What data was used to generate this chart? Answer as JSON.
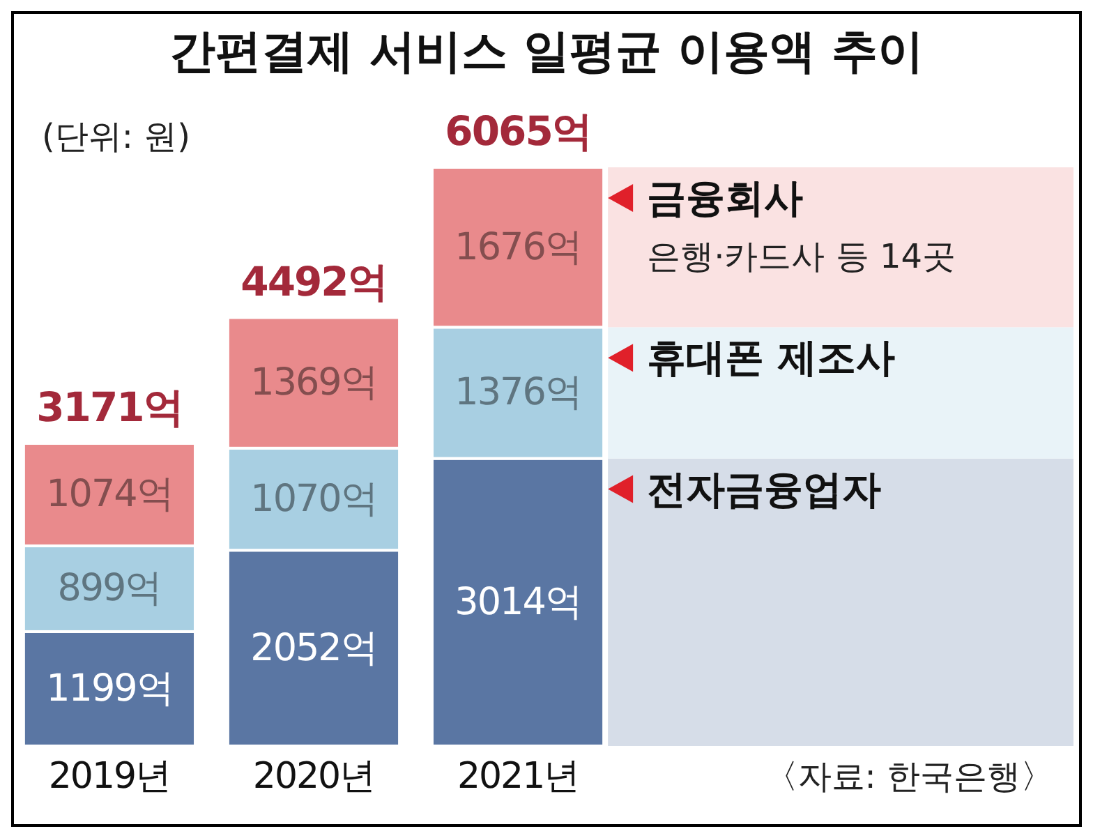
{
  "chart_data": {
    "type": "bar",
    "stacked": true,
    "title": "간편결제 서비스 일평균 이용액 추이",
    "categories": [
      "2019년",
      "2020년",
      "2021년"
    ],
    "series": [
      {
        "name": "전자금융업자",
        "color": "#5a76a3",
        "values": [
          1199,
          2052,
          3014
        ],
        "value_labels": [
          "1199억",
          "2052억",
          "3014억"
        ]
      },
      {
        "name": "휴대폰 제조사",
        "color": "#a8cfe2",
        "values": [
          899,
          1070,
          1376
        ],
        "value_labels": [
          "899억",
          "1070억",
          "1376억"
        ]
      },
      {
        "name": "금융회사",
        "color": "#e98a8c",
        "values": [
          1074,
          1369,
          1676
        ],
        "value_labels": [
          "1074억",
          "1369억",
          "1676억"
        ]
      }
    ],
    "totals": [
      "3171억",
      "4492억",
      "6065억"
    ],
    "legend": "right",
    "annotations": [
      "(단위: 원)",
      "은행·카드사 등 14곳",
      "〈자료: 한국은행〉"
    ]
  }
}
